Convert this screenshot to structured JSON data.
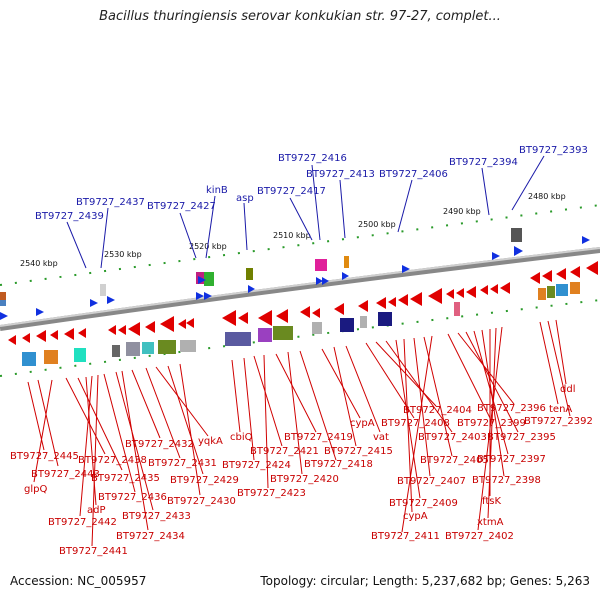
{
  "title": "Bacillus thuringiensis serovar konkukian str. 97-27, complet...",
  "footer": {
    "accession": "Accession: NC_005957",
    "summary": "Topology: circular; Length: 5,237,682 bp; Genes: 5,263"
  },
  "kbp_labels": [
    "2540 kbp",
    "2530 kbp",
    "2520 kbp",
    "2510 kbp",
    "2500 kbp",
    "2490 kbp",
    "2480 kbp"
  ],
  "gene_labels_top": [
    "BT9727_2439",
    "BT9727_2437",
    "BT9727_2427",
    "kinB",
    "asp",
    "BT9727_2417",
    "BT9727_2416",
    "BT9727_2413",
    "BT9727_2406",
    "BT9727_2394",
    "BT9727_2393"
  ],
  "gene_labels_bottom": [
    "BT9727_2445",
    "BT9727_2443",
    "glpQ",
    "BT9727_2438",
    "BT9727_2435",
    "adP",
    "BT9727_2442",
    "BT9727_2436",
    "BT9727_2441",
    "BT9727_2433",
    "BT9727_2434",
    "BT9727_2432",
    "BT9727_2431",
    "yqkA",
    "BT9727_2429",
    "BT9727_2430",
    "cbiQ",
    "BT9727_2424",
    "BT9727_2421",
    "BT9727_2423",
    "BT9727_2419",
    "BT9727_2420",
    "BT9727_2418",
    "cypA",
    "BT9727_2415",
    "vat",
    "BT9727_2408",
    "BT9727_2404",
    "BT9727_2403",
    "BT9727_2409",
    "cypA",
    "BT9727_2407",
    "BT9727_2405",
    "BT9727_2411",
    "BT9727_2399",
    "BT9727_2396",
    "BT9727_2395",
    "BT9727_2397",
    "BT9727_2398",
    "ftsK",
    "xtmA",
    "BT9727_2402",
    "tenA",
    "BT9727_2392",
    "ddl"
  ]
}
